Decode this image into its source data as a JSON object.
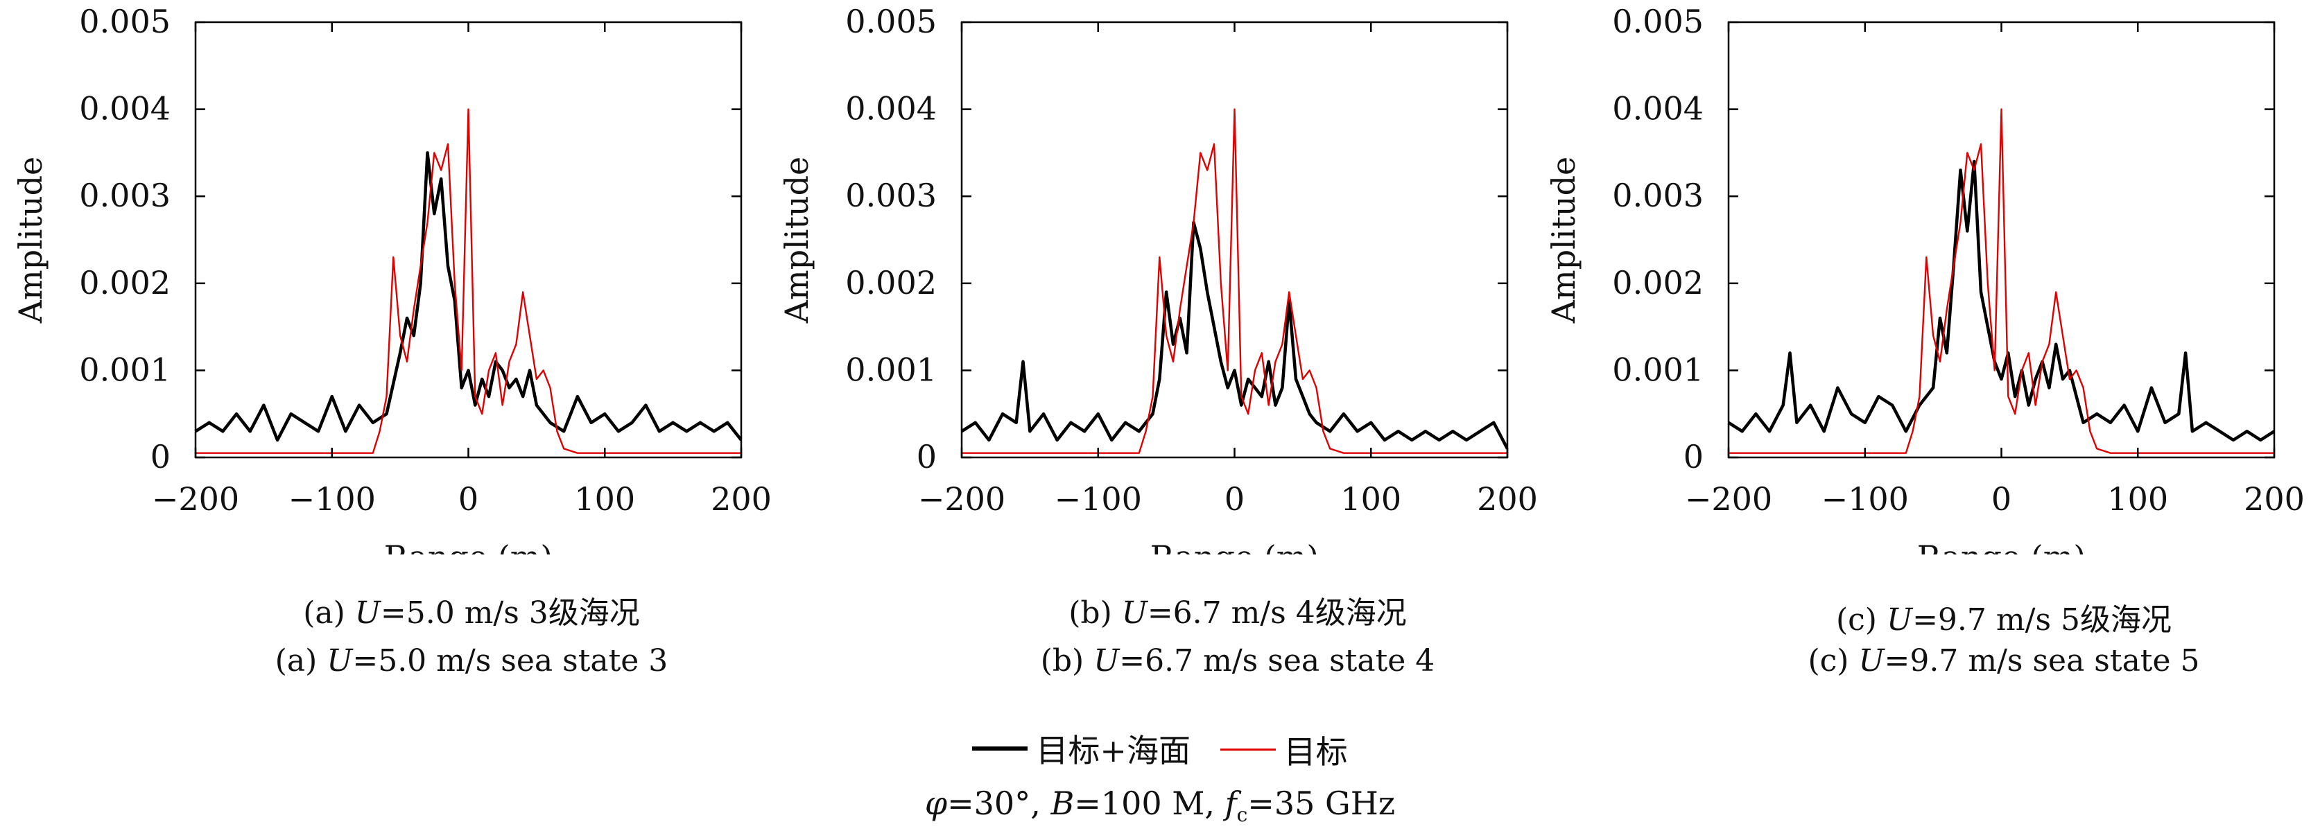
{
  "colors": {
    "combined": "#000000",
    "target": "#e00000"
  },
  "charts": [
    {
      "id": "a",
      "caption_zh": {
        "pre": "(a)  ",
        "var": "U",
        "post": "=5.0 m/s 3级海况"
      },
      "caption_en": {
        "pre": "(a)  ",
        "var": "U",
        "post": "=5.0 m/s sea state 3"
      }
    },
    {
      "id": "b",
      "caption_zh": {
        "pre": "(b)  ",
        "var": "U",
        "post": "=6.7 m/s 4级海况"
      },
      "caption_en": {
        "pre": "(b)  ",
        "var": "U",
        "post": "=6.7 m/s sea state 4"
      }
    },
    {
      "id": "c",
      "caption_zh": {
        "pre": "(c)  ",
        "var": "U",
        "post": "=9.7 m/s 5级海况"
      },
      "caption_en": {
        "pre": "(c)  ",
        "var": "U",
        "post": "=9.7 m/s sea state 5"
      }
    }
  ],
  "legend": {
    "combined": "目标+海面",
    "target": "目标"
  },
  "conditions": {
    "phi": "φ",
    "phi_val": "=30°, ",
    "B": "B",
    "B_val": "=100 M, ",
    "f": "f",
    "f_sub": "c",
    "f_val": "=35 GHz"
  },
  "chart_data": [
    {
      "type": "line",
      "xlabel": "Range (m)",
      "ylabel": "Amplitude",
      "xlim": [
        -200,
        200
      ],
      "ylim": [
        0,
        0.005
      ],
      "xticks": [
        -200,
        -100,
        0,
        100,
        200
      ],
      "xtick_labels": [
        "−200",
        "−100",
        "0",
        "100",
        "200"
      ],
      "yticks": [
        0,
        0.001,
        0.002,
        0.003,
        0.004,
        0.005
      ],
      "ytick_labels": [
        "0",
        "0.001",
        "0.002",
        "0.003",
        "0.004",
        "0.005"
      ],
      "grid": false,
      "series": [
        {
          "name": "目标+海面",
          "x": [
            -200,
            -190,
            -180,
            -170,
            -160,
            -150,
            -140,
            -130,
            -120,
            -110,
            -100,
            -90,
            -80,
            -70,
            -60,
            -50,
            -45,
            -40,
            -35,
            -30,
            -25,
            -20,
            -15,
            -10,
            -5,
            0,
            5,
            10,
            15,
            20,
            25,
            30,
            35,
            40,
            45,
            50,
            55,
            60,
            70,
            80,
            90,
            100,
            110,
            120,
            130,
            140,
            150,
            160,
            170,
            180,
            190,
            200
          ],
          "y": [
            0.0003,
            0.0004,
            0.0003,
            0.0005,
            0.0003,
            0.0006,
            0.0002,
            0.0005,
            0.0004,
            0.0003,
            0.0007,
            0.0003,
            0.0006,
            0.0004,
            0.0005,
            0.0012,
            0.0016,
            0.0014,
            0.002,
            0.0035,
            0.0028,
            0.0032,
            0.0022,
            0.0018,
            0.0008,
            0.001,
            0.0006,
            0.0009,
            0.0007,
            0.0011,
            0.001,
            0.0008,
            0.0009,
            0.0007,
            0.001,
            0.0006,
            0.0005,
            0.0004,
            0.0003,
            0.0007,
            0.0004,
            0.0005,
            0.0003,
            0.0004,
            0.0006,
            0.0003,
            0.0004,
            0.0003,
            0.0004,
            0.0003,
            0.0004,
            0.0002
          ]
        },
        {
          "name": "目标",
          "x": [
            -200,
            -70,
            -65,
            -60,
            -55,
            -50,
            -45,
            -40,
            -35,
            -30,
            -25,
            -20,
            -15,
            -10,
            -5,
            0,
            5,
            10,
            15,
            20,
            25,
            30,
            35,
            40,
            45,
            50,
            55,
            60,
            65,
            70,
            80,
            200
          ],
          "y": [
            5e-05,
            5e-05,
            0.0003,
            0.0007,
            0.0023,
            0.0014,
            0.0011,
            0.0017,
            0.0022,
            0.0027,
            0.0035,
            0.0033,
            0.0036,
            0.002,
            0.001,
            0.004,
            0.0007,
            0.0005,
            0.001,
            0.0012,
            0.0006,
            0.0011,
            0.0013,
            0.0019,
            0.0014,
            0.0009,
            0.001,
            0.0008,
            0.0003,
            0.0001,
            5e-05,
            5e-05
          ]
        }
      ]
    },
    {
      "type": "line",
      "xlabel": "Range (m)",
      "ylabel": "Amplitude",
      "xlim": [
        -200,
        200
      ],
      "ylim": [
        0,
        0.005
      ],
      "xticks": [
        -200,
        -100,
        0,
        100,
        200
      ],
      "xtick_labels": [
        "−200",
        "−100",
        "0",
        "100",
        "200"
      ],
      "yticks": [
        0,
        0.001,
        0.002,
        0.003,
        0.004,
        0.005
      ],
      "ytick_labels": [
        "0",
        "0.001",
        "0.002",
        "0.003",
        "0.004",
        "0.005"
      ],
      "grid": false,
      "series": [
        {
          "name": "目标+海面",
          "x": [
            -200,
            -190,
            -180,
            -170,
            -160,
            -155,
            -150,
            -140,
            -130,
            -120,
            -110,
            -100,
            -90,
            -80,
            -70,
            -60,
            -55,
            -50,
            -45,
            -40,
            -35,
            -30,
            -25,
            -20,
            -15,
            -10,
            -5,
            0,
            5,
            10,
            15,
            20,
            25,
            30,
            35,
            40,
            45,
            50,
            55,
            60,
            70,
            80,
            90,
            100,
            110,
            120,
            130,
            140,
            150,
            160,
            170,
            180,
            190,
            200
          ],
          "y": [
            0.0003,
            0.0004,
            0.0002,
            0.0005,
            0.0004,
            0.0011,
            0.0003,
            0.0005,
            0.0002,
            0.0004,
            0.0003,
            0.0005,
            0.0002,
            0.0004,
            0.0003,
            0.0005,
            0.0009,
            0.0019,
            0.0013,
            0.0016,
            0.0012,
            0.0027,
            0.0024,
            0.0019,
            0.0015,
            0.0011,
            0.0008,
            0.001,
            0.0006,
            0.0009,
            0.0008,
            0.0007,
            0.0011,
            0.0006,
            0.0008,
            0.0018,
            0.0009,
            0.0007,
            0.0005,
            0.0004,
            0.0003,
            0.0005,
            0.0003,
            0.0004,
            0.0002,
            0.0003,
            0.0002,
            0.0003,
            0.0002,
            0.0003,
            0.0002,
            0.0003,
            0.0004,
            0.0001
          ]
        },
        {
          "name": "目标",
          "x": [
            -200,
            -70,
            -65,
            -60,
            -55,
            -50,
            -45,
            -40,
            -35,
            -30,
            -25,
            -20,
            -15,
            -10,
            -5,
            0,
            5,
            10,
            15,
            20,
            25,
            30,
            35,
            40,
            45,
            50,
            55,
            60,
            65,
            70,
            80,
            200
          ],
          "y": [
            5e-05,
            5e-05,
            0.0003,
            0.0007,
            0.0023,
            0.0014,
            0.0011,
            0.0017,
            0.0022,
            0.0027,
            0.0035,
            0.0033,
            0.0036,
            0.002,
            0.001,
            0.004,
            0.0007,
            0.0005,
            0.001,
            0.0012,
            0.0006,
            0.0011,
            0.0013,
            0.0019,
            0.0014,
            0.0009,
            0.001,
            0.0008,
            0.0003,
            0.0001,
            5e-05,
            5e-05
          ]
        }
      ]
    },
    {
      "type": "line",
      "xlabel": "Range (m)",
      "ylabel": "Amplitude",
      "xlim": [
        -200,
        200
      ],
      "ylim": [
        0,
        0.005
      ],
      "xticks": [
        -200,
        -100,
        0,
        100,
        200
      ],
      "xtick_labels": [
        "−200",
        "−100",
        "0",
        "100",
        "200"
      ],
      "yticks": [
        0,
        0.001,
        0.002,
        0.003,
        0.004,
        0.005
      ],
      "ytick_labels": [
        "0",
        "0.001",
        "0.002",
        "0.003",
        "0.004",
        "0.005"
      ],
      "grid": false,
      "series": [
        {
          "name": "目标+海面",
          "x": [
            -200,
            -190,
            -180,
            -170,
            -160,
            -155,
            -150,
            -140,
            -130,
            -120,
            -110,
            -100,
            -90,
            -80,
            -70,
            -60,
            -50,
            -45,
            -40,
            -35,
            -30,
            -25,
            -20,
            -15,
            -10,
            -5,
            0,
            5,
            10,
            15,
            20,
            25,
            30,
            35,
            40,
            45,
            50,
            55,
            60,
            70,
            80,
            90,
            100,
            110,
            120,
            130,
            135,
            140,
            150,
            160,
            170,
            180,
            190,
            200
          ],
          "y": [
            0.0004,
            0.0003,
            0.0005,
            0.0003,
            0.0006,
            0.0012,
            0.0004,
            0.0006,
            0.0003,
            0.0008,
            0.0005,
            0.0004,
            0.0007,
            0.0006,
            0.0003,
            0.0006,
            0.0008,
            0.0016,
            0.0012,
            0.0022,
            0.0033,
            0.0026,
            0.0034,
            0.0019,
            0.0015,
            0.0011,
            0.0009,
            0.0012,
            0.0007,
            0.001,
            0.0006,
            0.0009,
            0.0011,
            0.0008,
            0.0013,
            0.0009,
            0.001,
            0.0007,
            0.0004,
            0.0005,
            0.0004,
            0.0006,
            0.0003,
            0.0008,
            0.0004,
            0.0005,
            0.0012,
            0.0003,
            0.0004,
            0.0003,
            0.0002,
            0.0003,
            0.0002,
            0.0003
          ]
        },
        {
          "name": "目标",
          "x": [
            -200,
            -70,
            -65,
            -60,
            -55,
            -50,
            -45,
            -40,
            -35,
            -30,
            -25,
            -20,
            -15,
            -10,
            -5,
            0,
            5,
            10,
            15,
            20,
            25,
            30,
            35,
            40,
            45,
            50,
            55,
            60,
            65,
            70,
            80,
            200
          ],
          "y": [
            5e-05,
            5e-05,
            0.0003,
            0.0007,
            0.0023,
            0.0014,
            0.0011,
            0.0017,
            0.0022,
            0.0027,
            0.0035,
            0.0033,
            0.0036,
            0.002,
            0.001,
            0.004,
            0.0007,
            0.0005,
            0.001,
            0.0012,
            0.0006,
            0.0011,
            0.0013,
            0.0019,
            0.0014,
            0.0009,
            0.001,
            0.0008,
            0.0003,
            0.0001,
            5e-05,
            5e-05
          ]
        }
      ]
    }
  ]
}
